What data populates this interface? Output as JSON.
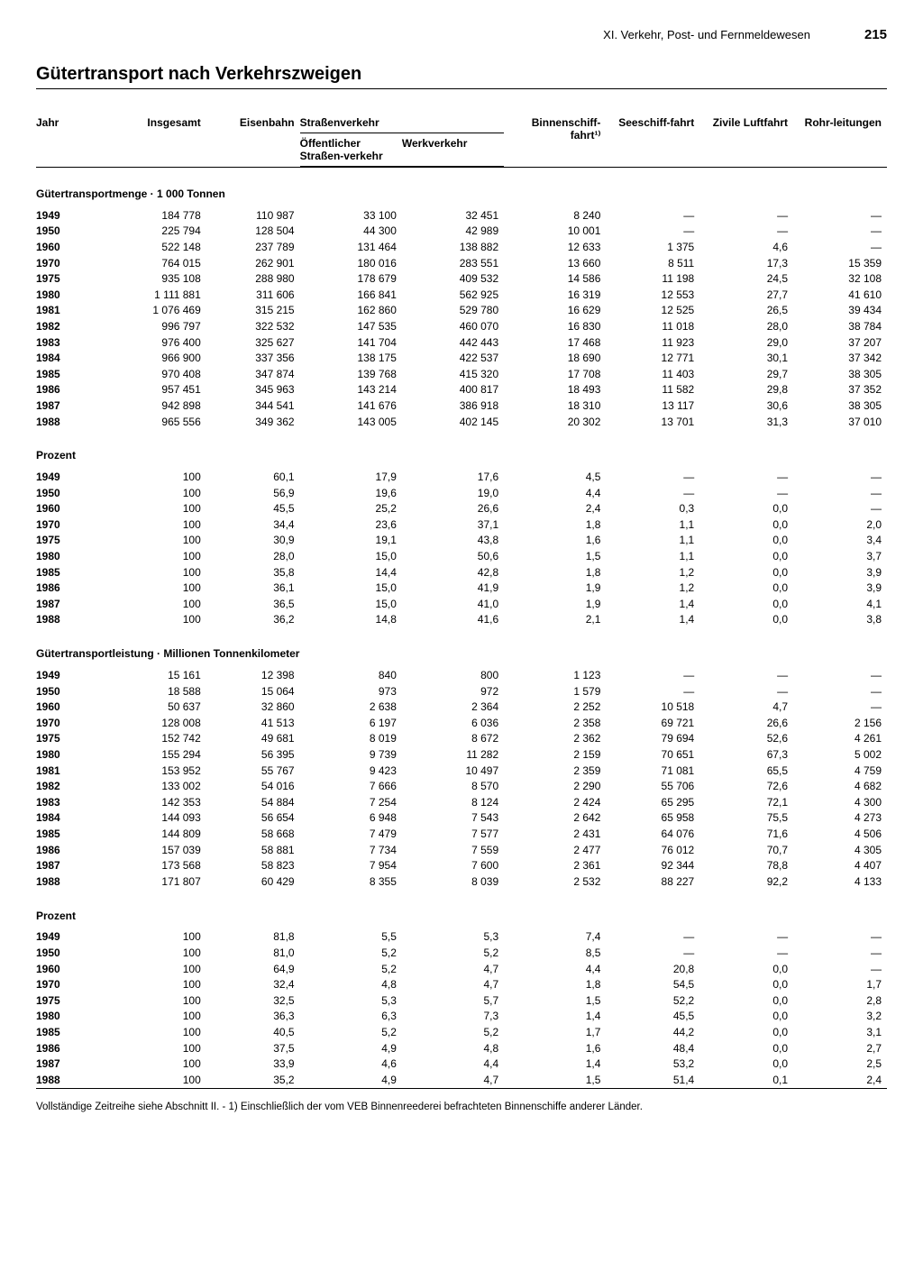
{
  "page": {
    "chapter": "XI. Verkehr, Post- und Fernmeldewesen",
    "number": "215",
    "title": "Gütertransport nach Verkehrszweigen",
    "footnote": "Vollständige Zeitreihe siehe Abschnitt II. - 1) Einschließlich der vom VEB Binnenreederei befrachteten Binnenschiffe anderer Länder."
  },
  "columns": {
    "jahr": "Jahr",
    "insgesamt": "Insgesamt",
    "eisenbahn": "Eisenbahn",
    "strassen": "Straßenverkehr",
    "oeff": "Öffentlicher Straßen-verkehr",
    "werk": "Werkverkehr",
    "binnen": "Binnenschiff-fahrt¹⁾",
    "see": "Seeschiff-fahrt",
    "luft": "Zivile Luftfahrt",
    "rohr": "Rohr-leitungen"
  },
  "sections": [
    {
      "title": "Gütertransportmenge · 1 000 Tonnen",
      "rows": [
        [
          "1949",
          "184 778",
          "110 987",
          "33 100",
          "32 451",
          "8 240",
          "—",
          "—",
          "—"
        ],
        [
          "1950",
          "225 794",
          "128 504",
          "44 300",
          "42 989",
          "10 001",
          "—",
          "—",
          "—"
        ],
        [
          "1960",
          "522 148",
          "237 789",
          "131 464",
          "138 882",
          "12 633",
          "1 375",
          "4,6",
          "—"
        ],
        [
          "1970",
          "764 015",
          "262 901",
          "180 016",
          "283 551",
          "13 660",
          "8 511",
          "17,3",
          "15 359"
        ],
        [
          "1975",
          "935 108",
          "288 980",
          "178 679",
          "409 532",
          "14 586",
          "11 198",
          "24,5",
          "32 108"
        ],
        [
          "1980",
          "1 111 881",
          "311 606",
          "166 841",
          "562 925",
          "16 319",
          "12 553",
          "27,7",
          "41 610"
        ],
        [
          "1981",
          "1 076 469",
          "315 215",
          "162 860",
          "529 780",
          "16 629",
          "12 525",
          "26,5",
          "39 434"
        ],
        [
          "1982",
          "996 797",
          "322 532",
          "147 535",
          "460 070",
          "16 830",
          "11 018",
          "28,0",
          "38 784"
        ],
        [
          "1983",
          "976 400",
          "325 627",
          "141 704",
          "442 443",
          "17 468",
          "11 923",
          "29,0",
          "37 207"
        ],
        [
          "1984",
          "966 900",
          "337 356",
          "138 175",
          "422 537",
          "18 690",
          "12 771",
          "30,1",
          "37 342"
        ],
        [
          "1985",
          "970 408",
          "347 874",
          "139 768",
          "415 320",
          "17 708",
          "11 403",
          "29,7",
          "38 305"
        ],
        [
          "1986",
          "957 451",
          "345 963",
          "143 214",
          "400 817",
          "18 493",
          "11 582",
          "29,8",
          "37 352"
        ],
        [
          "1987",
          "942 898",
          "344 541",
          "141 676",
          "386 918",
          "18 310",
          "13 117",
          "30,6",
          "38 305"
        ],
        [
          "1988",
          "965 556",
          "349 362",
          "143 005",
          "402 145",
          "20 302",
          "13 701",
          "31,3",
          "37 010"
        ]
      ]
    },
    {
      "title": "Prozent",
      "rows": [
        [
          "1949",
          "100",
          "60,1",
          "17,9",
          "17,6",
          "4,5",
          "—",
          "—",
          "—"
        ],
        [
          "1950",
          "100",
          "56,9",
          "19,6",
          "19,0",
          "4,4",
          "—",
          "—",
          "—"
        ],
        [
          "1960",
          "100",
          "45,5",
          "25,2",
          "26,6",
          "2,4",
          "0,3",
          "0,0",
          "—"
        ],
        [
          "1970",
          "100",
          "34,4",
          "23,6",
          "37,1",
          "1,8",
          "1,1",
          "0,0",
          "2,0"
        ],
        [
          "1975",
          "100",
          "30,9",
          "19,1",
          "43,8",
          "1,6",
          "1,1",
          "0,0",
          "3,4"
        ],
        [
          "1980",
          "100",
          "28,0",
          "15,0",
          "50,6",
          "1,5",
          "1,1",
          "0,0",
          "3,7"
        ],
        [
          "1985",
          "100",
          "35,8",
          "14,4",
          "42,8",
          "1,8",
          "1,2",
          "0,0",
          "3,9"
        ],
        [
          "1986",
          "100",
          "36,1",
          "15,0",
          "41,9",
          "1,9",
          "1,2",
          "0,0",
          "3,9"
        ],
        [
          "1987",
          "100",
          "36,5",
          "15,0",
          "41,0",
          "1,9",
          "1,4",
          "0,0",
          "4,1"
        ],
        [
          "1988",
          "100",
          "36,2",
          "14,8",
          "41,6",
          "2,1",
          "1,4",
          "0,0",
          "3,8"
        ]
      ]
    },
    {
      "title": "Gütertransportleistung · Millionen Tonnenkilometer",
      "rows": [
        [
          "1949",
          "15 161",
          "12 398",
          "840",
          "800",
          "1 123",
          "—",
          "—",
          "—"
        ],
        [
          "1950",
          "18 588",
          "15 064",
          "973",
          "972",
          "1 579",
          "—",
          "—",
          "—"
        ],
        [
          "1960",
          "50 637",
          "32 860",
          "2 638",
          "2 364",
          "2 252",
          "10 518",
          "4,7",
          "—"
        ],
        [
          "1970",
          "128 008",
          "41 513",
          "6 197",
          "6 036",
          "2 358",
          "69 721",
          "26,6",
          "2 156"
        ],
        [
          "1975",
          "152 742",
          "49 681",
          "8 019",
          "8 672",
          "2 362",
          "79 694",
          "52,6",
          "4 261"
        ],
        [
          "1980",
          "155 294",
          "56 395",
          "9 739",
          "11 282",
          "2 159",
          "70 651",
          "67,3",
          "5 002"
        ],
        [
          "1981",
          "153 952",
          "55 767",
          "9 423",
          "10 497",
          "2 359",
          "71 081",
          "65,5",
          "4 759"
        ],
        [
          "1982",
          "133 002",
          "54 016",
          "7 666",
          "8 570",
          "2 290",
          "55 706",
          "72,6",
          "4 682"
        ],
        [
          "1983",
          "142 353",
          "54 884",
          "7 254",
          "8 124",
          "2 424",
          "65 295",
          "72,1",
          "4 300"
        ],
        [
          "1984",
          "144 093",
          "56 654",
          "6 948",
          "7 543",
          "2 642",
          "65 958",
          "75,5",
          "4 273"
        ],
        [
          "1985",
          "144 809",
          "58 668",
          "7 479",
          "7 577",
          "2 431",
          "64 076",
          "71,6",
          "4 506"
        ],
        [
          "1986",
          "157 039",
          "58 881",
          "7 734",
          "7 559",
          "2 477",
          "76 012",
          "70,7",
          "4 305"
        ],
        [
          "1987",
          "173 568",
          "58 823",
          "7 954",
          "7 600",
          "2 361",
          "92 344",
          "78,8",
          "4 407"
        ],
        [
          "1988",
          "171 807",
          "60 429",
          "8 355",
          "8 039",
          "2 532",
          "88 227",
          "92,2",
          "4 133"
        ]
      ]
    },
    {
      "title": "Prozent",
      "rows": [
        [
          "1949",
          "100",
          "81,8",
          "5,5",
          "5,3",
          "7,4",
          "—",
          "—",
          "—"
        ],
        [
          "1950",
          "100",
          "81,0",
          "5,2",
          "5,2",
          "8,5",
          "—",
          "—",
          "—"
        ],
        [
          "1960",
          "100",
          "64,9",
          "5,2",
          "4,7",
          "4,4",
          "20,8",
          "0,0",
          "—"
        ],
        [
          "1970",
          "100",
          "32,4",
          "4,8",
          "4,7",
          "1,8",
          "54,5",
          "0,0",
          "1,7"
        ],
        [
          "1975",
          "100",
          "32,5",
          "5,3",
          "5,7",
          "1,5",
          "52,2",
          "0,0",
          "2,8"
        ],
        [
          "1980",
          "100",
          "36,3",
          "6,3",
          "7,3",
          "1,4",
          "45,5",
          "0,0",
          "3,2"
        ],
        [
          "1985",
          "100",
          "40,5",
          "5,2",
          "5,2",
          "1,7",
          "44,2",
          "0,0",
          "3,1"
        ],
        [
          "1986",
          "100",
          "37,5",
          "4,9",
          "4,8",
          "1,6",
          "48,4",
          "0,0",
          "2,7"
        ],
        [
          "1987",
          "100",
          "33,9",
          "4,6",
          "4,4",
          "1,4",
          "53,2",
          "0,0",
          "2,5"
        ],
        [
          "1988",
          "100",
          "35,2",
          "4,9",
          "4,7",
          "1,5",
          "51,4",
          "0,1",
          "2,4"
        ]
      ]
    }
  ]
}
